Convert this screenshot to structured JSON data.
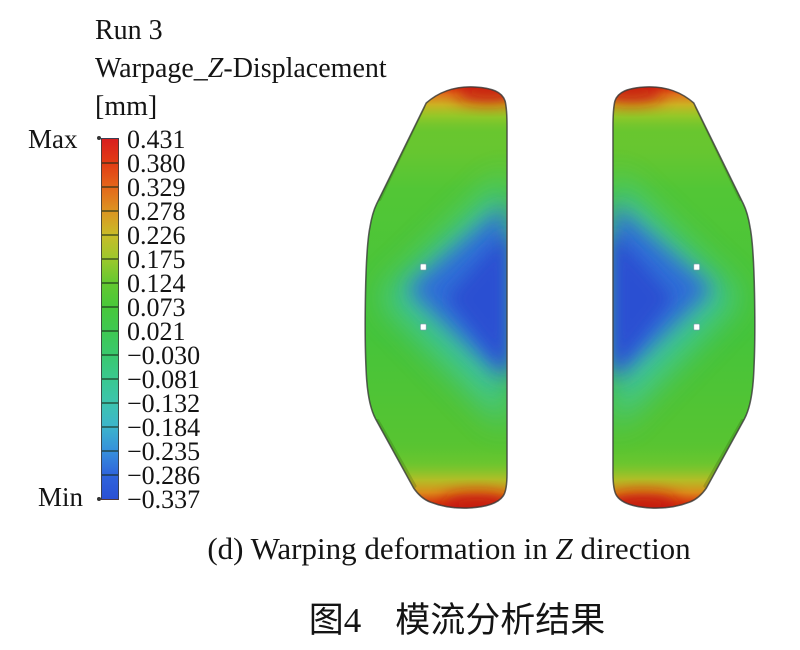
{
  "figure": {
    "legend_header": {
      "run": "Run 3",
      "quantity_prefix": "Warpage_",
      "quantity_z": "Z",
      "quantity_suffix": "-Displacement",
      "units": "[mm]"
    },
    "colorbar": {
      "max_label": "Max",
      "min_label": "Min",
      "values": [
        "0.431",
        "0.380",
        "0.329",
        "0.278",
        "0.226",
        "0.175",
        "0.124",
        "0.073",
        "0.021",
        "−0.030",
        "−0.081",
        "−0.132",
        "−0.184",
        "−0.235",
        "−0.286",
        "−0.337"
      ]
    },
    "caption_en": {
      "prefix": "(d) Warping deformation in ",
      "z": "Z",
      "suffix": " direction"
    },
    "caption_zh": {
      "label": "图4",
      "text": "模流分析结果"
    }
  },
  "chart_data": {
    "type": "heatmap",
    "subtype": "warpage-contour-plot",
    "title": "Run 3 Warpage_Z-Displacement [mm]",
    "units": "mm",
    "panel_label": "(d)",
    "caption_en": "(d) Warping deformation in Z direction",
    "caption_zh": "图4 模流分析结果",
    "min": -0.337,
    "max": 0.431,
    "colorbar_ticks": [
      0.431,
      0.38,
      0.329,
      0.278,
      0.226,
      0.175,
      0.124,
      0.073,
      0.021,
      -0.03,
      -0.081,
      -0.132,
      -0.184,
      -0.235,
      -0.286,
      -0.337
    ],
    "colorbar_colors_top_to_bottom": [
      "#d81e1e",
      "#e23c14",
      "#e4671a",
      "#dc9422",
      "#c8bc28",
      "#9cc82c",
      "#64c830",
      "#48c83a",
      "#3ec852",
      "#3ac86e",
      "#3ac890",
      "#3cc4ae",
      "#3cb4cc",
      "#3690dc",
      "#2f64dc",
      "#2b50d4"
    ],
    "legend_position": "left",
    "panels": [
      {
        "name": "left part",
        "orientation": "flat side facing right (toward center)",
        "regions": [
          {
            "region": "top edge",
            "value_mm": 0.43,
            "color": "red"
          },
          {
            "region": "bottom edge",
            "value_mm": 0.43,
            "color": "red"
          },
          {
            "region": "outer body",
            "value_mm": 0.07,
            "color": "green"
          },
          {
            "region": "central wedge at inner edge",
            "value_mm": -0.337,
            "color": "blue"
          },
          {
            "region": "two small gate marks (white dots) mid-height",
            "value_mm": null,
            "color": "white"
          }
        ]
      },
      {
        "name": "right part",
        "orientation": "mirror image of left part, flat side facing left (toward center)",
        "regions": [
          {
            "region": "top edge",
            "value_mm": 0.43,
            "color": "red"
          },
          {
            "region": "bottom edge",
            "value_mm": 0.43,
            "color": "red"
          },
          {
            "region": "outer body",
            "value_mm": 0.07,
            "color": "green"
          },
          {
            "region": "central wedge at inner edge",
            "value_mm": -0.337,
            "color": "blue"
          },
          {
            "region": "two small gate marks (white dots) mid-height",
            "value_mm": null,
            "color": "white"
          }
        ]
      }
    ]
  },
  "colors": {
    "background": "#ffffff",
    "text": "#141414",
    "contour_base_green": "#4ac438",
    "contour_blue_min": "#2a4fd2",
    "contour_red_max": "#c21d10",
    "contour_cyan": "#3ec7b0"
  }
}
